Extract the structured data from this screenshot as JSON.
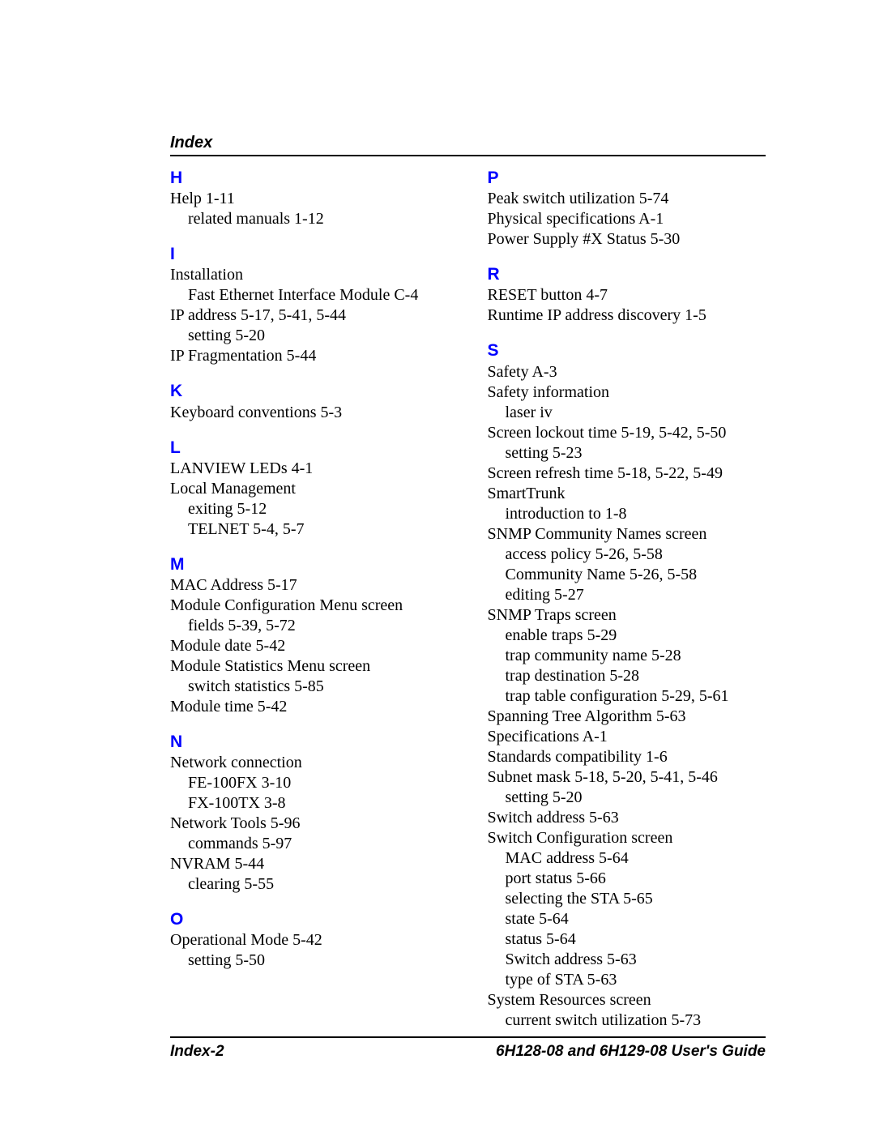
{
  "header": "Index",
  "footer_left": "Index-2",
  "footer_right": "6H128-08 and 6H129-08 User's Guide",
  "colors": {
    "letter": "#0000ff",
    "text": "#000000",
    "rule": "#000000",
    "background": "#ffffff"
  },
  "left_column": [
    {
      "letter": "H",
      "entries": [
        {
          "text": "Help  1-11"
        },
        {
          "text": "related manuals  1-12",
          "indent": 1
        }
      ]
    },
    {
      "letter": "I",
      "entries": [
        {
          "text": "Installation"
        },
        {
          "text": "Fast Ethernet Interface Module  C-4",
          "indent": 1
        },
        {
          "text": "IP address  5-17, 5-41, 5-44"
        },
        {
          "text": "setting  5-20",
          "indent": 1
        },
        {
          "text": "IP Fragmentation  5-44"
        }
      ]
    },
    {
      "letter": "K",
      "entries": [
        {
          "text": "Keyboard conventions  5-3"
        }
      ]
    },
    {
      "letter": "L",
      "entries": [
        {
          "text": "LANVIEW LEDs  4-1"
        },
        {
          "text": "Local Management"
        },
        {
          "text": "exiting  5-12",
          "indent": 1
        },
        {
          "text": "TELNET  5-4, 5-7",
          "indent": 1
        }
      ]
    },
    {
      "letter": "M",
      "entries": [
        {
          "text": "MAC Address  5-17"
        },
        {
          "text": "Module Configuration Menu screen"
        },
        {
          "text": "fields  5-39, 5-72",
          "indent": 1
        },
        {
          "text": "Module date  5-42"
        },
        {
          "text": "Module Statistics Menu screen"
        },
        {
          "text": "switch statistics  5-85",
          "indent": 1
        },
        {
          "text": "Module time  5-42"
        }
      ]
    },
    {
      "letter": "N",
      "entries": [
        {
          "text": "Network connection"
        },
        {
          "text": "FE-100FX  3-10",
          "indent": 1
        },
        {
          "text": "FX-100TX  3-8",
          "indent": 1
        },
        {
          "text": "Network Tools  5-96"
        },
        {
          "text": "commands  5-97",
          "indent": 1
        },
        {
          "text": "NVRAM  5-44"
        },
        {
          "text": "clearing  5-55",
          "indent": 1
        }
      ]
    },
    {
      "letter": "O",
      "entries": [
        {
          "text": "Operational Mode  5-42"
        },
        {
          "text": "setting  5-50",
          "indent": 1
        }
      ]
    }
  ],
  "right_column": [
    {
      "letter": "P",
      "entries": [
        {
          "text": "Peak switch utilization  5-74"
        },
        {
          "text": "Physical specifications  A-1"
        },
        {
          "text": "Power Supply #X Status  5-30"
        }
      ]
    },
    {
      "letter": "R",
      "entries": [
        {
          "text": "RESET button  4-7"
        },
        {
          "text": "Runtime IP address discovery  1-5"
        }
      ]
    },
    {
      "letter": "S",
      "entries": [
        {
          "text": "Safety  A-3"
        },
        {
          "text": "Safety information"
        },
        {
          "text": "laser  iv",
          "indent": 1
        },
        {
          "text": "Screen lockout time  5-19, 5-42, 5-50"
        },
        {
          "text": "setting  5-23",
          "indent": 1
        },
        {
          "text": "Screen refresh time  5-18, 5-22, 5-49"
        },
        {
          "text": "SmartTrunk"
        },
        {
          "text": "introduction to  1-8",
          "indent": 1
        },
        {
          "text": "SNMP Community Names screen"
        },
        {
          "text": "access policy  5-26, 5-58",
          "indent": 1
        },
        {
          "text": "Community Name  5-26, 5-58",
          "indent": 1
        },
        {
          "text": "editing  5-27",
          "indent": 1
        },
        {
          "text": "SNMP Traps screen"
        },
        {
          "text": "enable traps  5-29",
          "indent": 1
        },
        {
          "text": "trap community name  5-28",
          "indent": 1
        },
        {
          "text": "trap destination  5-28",
          "indent": 1
        },
        {
          "text": "trap table configuration  5-29, 5-61",
          "indent": 1
        },
        {
          "text": "Spanning Tree Algorithm  5-63"
        },
        {
          "text": "Specifications  A-1"
        },
        {
          "text": "Standards compatibility  1-6"
        },
        {
          "text": "Subnet mask  5-18, 5-20, 5-41, 5-46"
        },
        {
          "text": "setting  5-20",
          "indent": 1
        },
        {
          "text": "Switch address  5-63"
        },
        {
          "text": "Switch Configuration screen"
        },
        {
          "text": "MAC address  5-64",
          "indent": 1
        },
        {
          "text": "port status  5-66",
          "indent": 1
        },
        {
          "text": "selecting the STA  5-65",
          "indent": 1
        },
        {
          "text": "state  5-64",
          "indent": 1
        },
        {
          "text": "status  5-64",
          "indent": 1
        },
        {
          "text": "Switch address  5-63",
          "indent": 1
        },
        {
          "text": "type of STA  5-63",
          "indent": 1
        },
        {
          "text": "System Resources screen"
        },
        {
          "text": "current switch utilization  5-73",
          "indent": 1
        }
      ]
    }
  ]
}
